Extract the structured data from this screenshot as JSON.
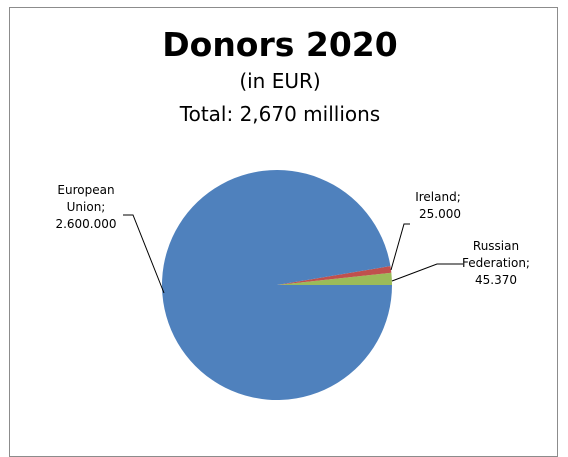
{
  "chart_data": {
    "type": "pie",
    "title": "Donors 2020",
    "subtitle": "(in EUR)",
    "total_line": "Total: 2,670 millions",
    "slices": [
      {
        "name": "European Union",
        "value": 2600000,
        "value_label": "2.600.000",
        "color": "#4f81bd"
      },
      {
        "name": "Ireland",
        "value": 25000,
        "value_label": "25.000",
        "color": "#c0504d"
      },
      {
        "name": "Russian Federation",
        "value": 45370,
        "value_label": "45.370",
        "color": "#9bbb59"
      }
    ],
    "data_label_lines": {
      "european_union": [
        "European",
        "Union;",
        "2.600.000"
      ],
      "ireland": [
        "Ireland;",
        "25.000"
      ],
      "russian_federation": [
        "Russian",
        "Federation;",
        "45.370"
      ]
    },
    "legend": "none"
  }
}
